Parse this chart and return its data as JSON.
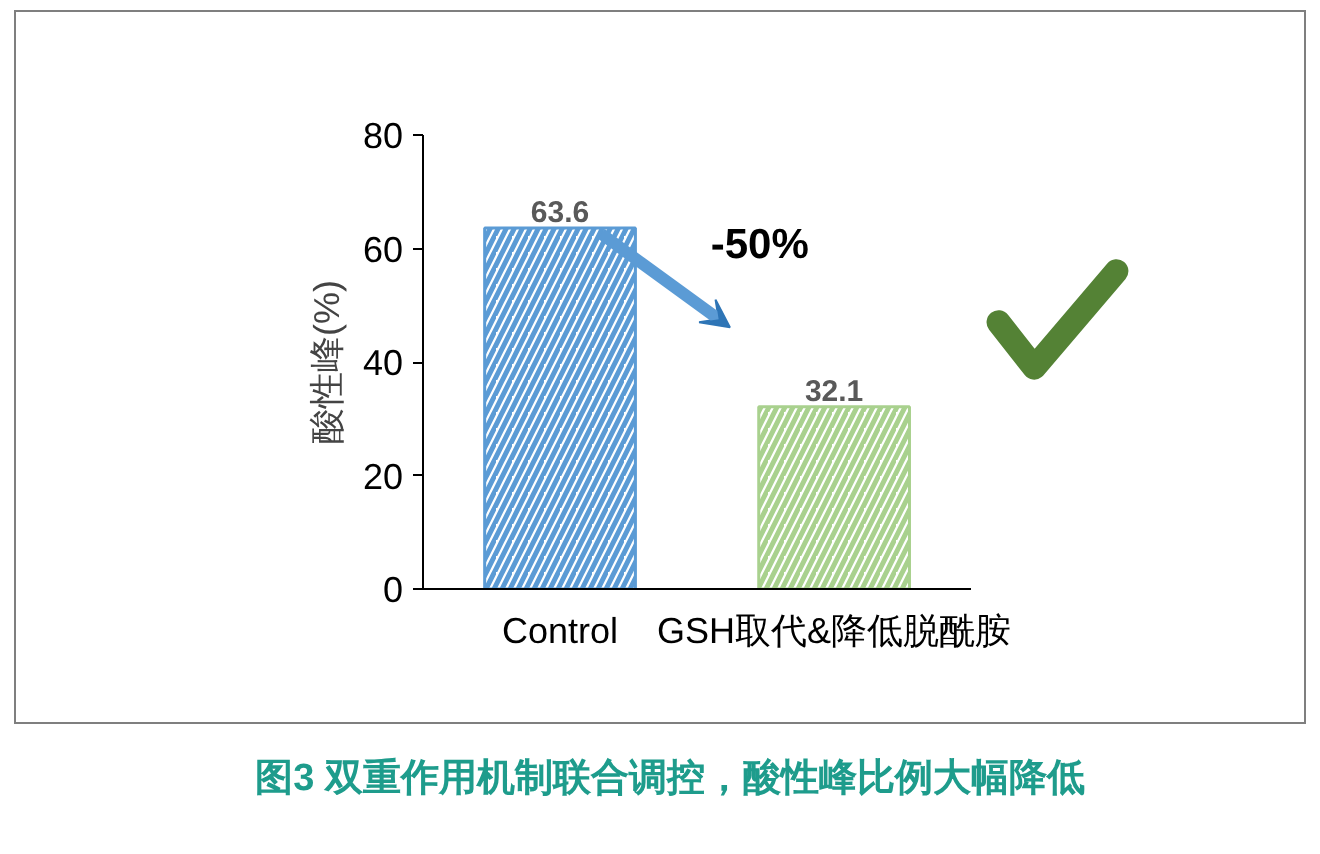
{
  "chart_data": {
    "type": "bar",
    "title": "图3 双重作用机制联合调控，酸性峰比例大幅降低",
    "categories": [
      "Control",
      "GSH取代&降低脱酰胺"
    ],
    "values": [
      63.6,
      32.1
    ],
    "colors": [
      "#5b9bd5",
      "#a9d18e"
    ],
    "ylabel": "酸性峰(%)",
    "ylim": [
      0,
      80
    ],
    "yticks": [
      0,
      20,
      40,
      60,
      80
    ],
    "data_labels": true,
    "grid": false,
    "annotations": [
      "-50%"
    ]
  }
}
